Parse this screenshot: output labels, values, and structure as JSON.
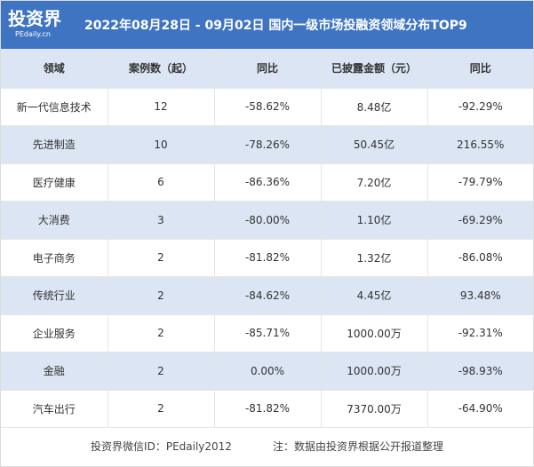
{
  "header": {
    "logo_text": "投资界",
    "logo_sub": "PEdaily.cn",
    "title": "2022年08月28日 - 09月02日 国内一级市场投融资领域分布TOP9"
  },
  "table": {
    "columns": [
      "领域",
      "案例数（起）",
      "同比",
      "已披露金额（元）",
      "同比"
    ],
    "rows": [
      [
        "新一代信息技术",
        "12",
        "-58.62%",
        "8.48亿",
        "-92.29%"
      ],
      [
        "先进制造",
        "10",
        "-78.26%",
        "50.45亿",
        "216.55%"
      ],
      [
        "医疗健康",
        "6",
        "-86.36%",
        "7.20亿",
        "-79.79%"
      ],
      [
        "大消费",
        "3",
        "-80.00%",
        "1.10亿",
        "-69.29%"
      ],
      [
        "电子商务",
        "2",
        "-81.82%",
        "1.32亿",
        "-86.08%"
      ],
      [
        "传统行业",
        "2",
        "-84.62%",
        "4.45亿",
        "93.48%"
      ],
      [
        "企业服务",
        "2",
        "-85.71%",
        "1000.00万",
        "-92.31%"
      ],
      [
        "金融",
        "2",
        "0.00%",
        "1000.00万",
        "-98.93%"
      ],
      [
        "汽车出行",
        "2",
        "-81.82%",
        "7370.00万",
        "-64.90%"
      ]
    ]
  },
  "footer": {
    "wechat": "投资界微信ID：PEdaily2012",
    "note": "注：数据由投资界根据公开报道整理"
  }
}
